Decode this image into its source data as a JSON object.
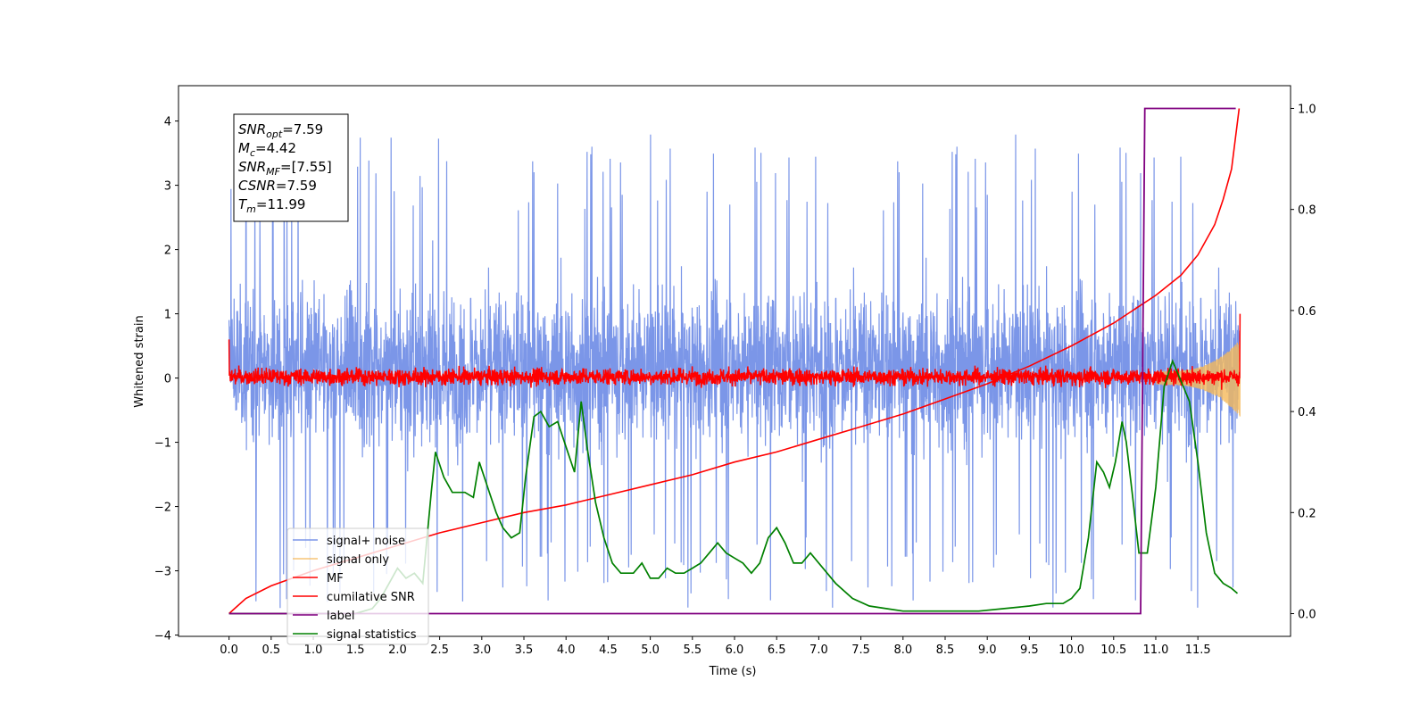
{
  "chart_data": {
    "type": "line",
    "xlabel": "Time (s)",
    "ylabel": "Whitened strain",
    "xlim": [
      -0.6,
      12.6
    ],
    "ylim": [
      -4.02,
      4.55
    ],
    "y2lim": [
      -0.045,
      1.045
    ],
    "x_ticks": [
      "0.0",
      "0.5",
      "1.0",
      "1.5",
      "2.0",
      "2.5",
      "3.0",
      "3.5",
      "4.0",
      "4.5",
      "5.0",
      "5.5",
      "6.0",
      "6.5",
      "7.0",
      "7.5",
      "8.0",
      "8.5",
      "9.0",
      "9.5",
      "10.0",
      "10.5",
      "11.0",
      "11.5"
    ],
    "y_ticks": [
      "4",
      "3",
      "2",
      "1",
      "0",
      "−1",
      "−2",
      "−3",
      "−4"
    ],
    "y2_ticks": [
      "1.0",
      "0.8",
      "0.6",
      "0.4",
      "0.2",
      "0.0"
    ],
    "annotation": {
      "lines": [
        {
          "main": "SNR",
          "sub": "opt",
          "rest": "=7.59"
        },
        {
          "main": "M",
          "sub": "c",
          "rest": "=4.42"
        },
        {
          "main": "SNR",
          "sub": "MF",
          "rest": "=[7.55]"
        },
        {
          "main": "CSNR",
          "sub": "",
          "rest": "=7.59"
        },
        {
          "main": "T",
          "sub": "m",
          "rest": "=11.99"
        }
      ]
    },
    "legend_position": "lower-left",
    "series": [
      {
        "name": "signal+ noise",
        "color": "#7b96e8",
        "axis": "left",
        "x_range": [
          0.0,
          12.0
        ],
        "noise_band": [
          -2.3,
          3.0
        ],
        "spikes_max": 4.2,
        "spikes_min": -3.6
      },
      {
        "name": "signal only",
        "color": "#f5b95a",
        "axis": "left",
        "x_range": [
          0.0,
          12.0
        ],
        "chirp_amplitude_end": 0.5,
        "chirp_start": 11.0
      },
      {
        "name": "MF",
        "color": "#ff0000",
        "axis": "left",
        "x_range": [
          0.0,
          12.0
        ],
        "band": [
          -0.2,
          0.3
        ],
        "end_value": 1.0
      },
      {
        "name": "cumilative SNR",
        "color": "#ff0000",
        "axis": "right",
        "x": [
          0.0,
          0.2,
          0.5,
          1.0,
          1.5,
          2.0,
          2.5,
          3.0,
          3.5,
          4.0,
          4.5,
          5.0,
          5.5,
          6.0,
          6.5,
          7.0,
          7.5,
          8.0,
          8.5,
          9.0,
          9.5,
          10.0,
          10.5,
          11.0,
          11.3,
          11.5,
          11.7,
          11.8,
          11.9,
          11.99
        ],
        "y": [
          0.0,
          0.03,
          0.055,
          0.085,
          0.11,
          0.135,
          0.16,
          0.18,
          0.2,
          0.215,
          0.235,
          0.255,
          0.275,
          0.3,
          0.32,
          0.345,
          0.37,
          0.395,
          0.425,
          0.455,
          0.49,
          0.53,
          0.575,
          0.63,
          0.67,
          0.71,
          0.77,
          0.82,
          0.88,
          1.0
        ]
      },
      {
        "name": "label",
        "color": "#800080",
        "axis": "right",
        "x": [
          0.0,
          10.82,
          10.87,
          11.95
        ],
        "y": [
          0.0,
          0.0,
          1.0,
          1.0
        ]
      },
      {
        "name": "signal statistics",
        "color": "#008000",
        "axis": "right",
        "x": [
          0.0,
          0.5,
          1.0,
          1.3,
          1.5,
          1.7,
          1.8,
          1.9,
          2.0,
          2.1,
          2.2,
          2.3,
          2.4,
          2.45,
          2.55,
          2.65,
          2.8,
          2.9,
          2.97,
          3.07,
          3.17,
          3.25,
          3.35,
          3.45,
          3.52,
          3.62,
          3.7,
          3.8,
          3.9,
          4.0,
          4.1,
          4.18,
          4.25,
          4.35,
          4.45,
          4.55,
          4.65,
          4.8,
          4.9,
          5.0,
          5.1,
          5.2,
          5.3,
          5.4,
          5.5,
          5.6,
          5.7,
          5.8,
          5.9,
          6.0,
          6.1,
          6.2,
          6.3,
          6.4,
          6.5,
          6.6,
          6.7,
          6.8,
          6.9,
          7.0,
          7.2,
          7.4,
          7.6,
          7.8,
          8.0,
          8.3,
          8.6,
          8.9,
          9.2,
          9.5,
          9.7,
          9.9,
          10.0,
          10.1,
          10.2,
          10.3,
          10.38,
          10.45,
          10.52,
          10.6,
          10.65,
          10.72,
          10.8,
          10.9,
          11.0,
          11.1,
          11.2,
          11.3,
          11.4,
          11.5,
          11.6,
          11.7,
          11.8,
          11.9,
          11.97
        ],
        "y": [
          0.0,
          0.0,
          0.0,
          0.0,
          0.0,
          0.01,
          0.03,
          0.06,
          0.09,
          0.07,
          0.08,
          0.06,
          0.24,
          0.32,
          0.27,
          0.24,
          0.24,
          0.23,
          0.3,
          0.25,
          0.2,
          0.17,
          0.15,
          0.16,
          0.27,
          0.39,
          0.4,
          0.37,
          0.38,
          0.33,
          0.28,
          0.42,
          0.33,
          0.22,
          0.15,
          0.1,
          0.08,
          0.08,
          0.1,
          0.07,
          0.07,
          0.09,
          0.08,
          0.08,
          0.09,
          0.1,
          0.12,
          0.14,
          0.12,
          0.11,
          0.1,
          0.08,
          0.1,
          0.15,
          0.17,
          0.14,
          0.1,
          0.1,
          0.12,
          0.1,
          0.06,
          0.03,
          0.015,
          0.01,
          0.005,
          0.005,
          0.005,
          0.005,
          0.01,
          0.015,
          0.02,
          0.02,
          0.03,
          0.05,
          0.15,
          0.3,
          0.28,
          0.25,
          0.3,
          0.38,
          0.34,
          0.24,
          0.12,
          0.12,
          0.25,
          0.45,
          0.5,
          0.46,
          0.42,
          0.3,
          0.16,
          0.08,
          0.06,
          0.05,
          0.04
        ]
      }
    ]
  }
}
